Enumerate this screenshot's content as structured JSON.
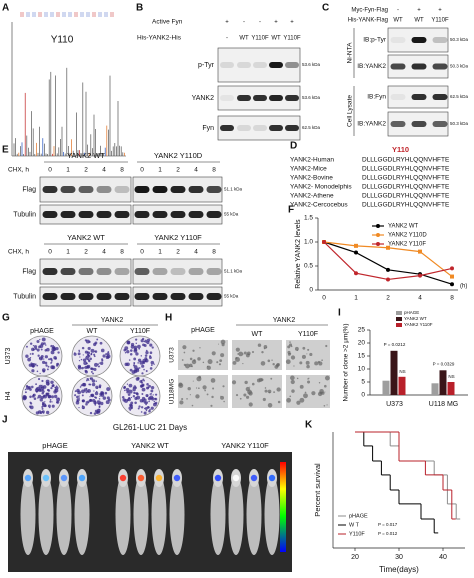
{
  "panels": {
    "A": {
      "label": "A",
      "annotation": "Y110"
    },
    "B": {
      "label": "B",
      "rows": [
        {
          "name": "Active Fyn",
          "lanes": [
            "+",
            "-",
            "-",
            "+",
            "+"
          ]
        },
        {
          "name": "His-YANK2-His",
          "lanes": [
            "-",
            "WT",
            "Y110F",
            "WT",
            "Y110F"
          ]
        }
      ],
      "blots": [
        {
          "name": "p-Tyr",
          "size": "53.6 kDa"
        },
        {
          "name": "YANK2",
          "size": "53.6 kDa"
        },
        {
          "name": "Fyn",
          "size": "62.5 kDa"
        }
      ]
    },
    "C": {
      "label": "C",
      "rows": [
        {
          "name": "Myc-Fyn-Flag",
          "lanes": [
            "-",
            "+",
            "+"
          ]
        },
        {
          "name": "His-YANK-Flag",
          "lanes": [
            "WT",
            "WT",
            "Y110F"
          ]
        }
      ],
      "groups": [
        "Ni-NTA",
        "Cell Lysate"
      ],
      "blots": [
        {
          "name": "IB:p-Tyr",
          "size": "50.3 kDa"
        },
        {
          "name": "IB:YANK2",
          "size": "50.3 kDa"
        },
        {
          "name": "IB:Fyn",
          "size": "62.5 kDa"
        },
        {
          "name": "IB:YANK2",
          "size": "50.3 kDa"
        }
      ]
    },
    "D": {
      "label": "D",
      "site": "Y110",
      "species": [
        {
          "name": "YANK2-Human",
          "sequence": "DLLLGGDLRYHLQQNVHFTE"
        },
        {
          "name": "YANK2-Mice",
          "sequence": "DLLLGGDLRYHLQQNVHFTE"
        },
        {
          "name": "YANK2-Bovine",
          "sequence": "DLLLGGDLRYHLQQNVHFTE"
        },
        {
          "name": "YANK2- Monodelphis",
          "sequence": "DLLLGGDLRYHLQQNVHFTE"
        },
        {
          "name": "YANK2-Athene",
          "sequence": "DLLLGGDLRYHLQQNVHFTE"
        },
        {
          "name": "YANK2-Cercocebus",
          "sequence": "DLLLGGDLRYHLQQNVHFTE"
        }
      ]
    },
    "E": {
      "label": "E",
      "experiments": [
        {
          "groups": [
            "YANK2 WT",
            "YANK2 Y110D"
          ],
          "time_label": "CHX, h",
          "times": [
            "0",
            "1",
            "2",
            "4",
            "8",
            "0",
            "1",
            "2",
            "4",
            "8"
          ],
          "blots": [
            {
              "name": "Flag",
              "size": "51.1 kDa"
            },
            {
              "name": "Tubulin",
              "size": "55 kDa"
            }
          ]
        },
        {
          "groups": [
            "YANK2 WT",
            "YANK2 Y110F"
          ],
          "time_label": "CHX, h",
          "times": [
            "0",
            "1",
            "2",
            "4",
            "8",
            "0",
            "1",
            "2",
            "4",
            "8"
          ],
          "blots": [
            {
              "name": "Flag",
              "size": "51.1 kDa"
            },
            {
              "name": "Tubulin",
              "size": "55 kDa"
            }
          ]
        }
      ]
    },
    "G": {
      "label": "G",
      "group": "YANK2",
      "columns": [
        "pHAGE",
        "WT",
        "Y110F"
      ],
      "rows": [
        "U373",
        "H4"
      ]
    },
    "H": {
      "label": "H",
      "group": "YANK2",
      "columns": [
        "pHAGE",
        "WT",
        "Y110F"
      ],
      "rows": [
        "U373",
        "U118MG"
      ]
    },
    "J": {
      "label": "J",
      "title": "GL261-LUC  21 Days",
      "groups": [
        "pHAGE",
        "YANK2 WT",
        "YANK2 Y110F"
      ]
    }
  },
  "chart_data": [
    {
      "type": "line",
      "panel_label": "F",
      "y_label": "Relative YANK2 levels",
      "x_unit": "(h)",
      "categories": [
        "0",
        "1",
        "2",
        "4",
        "8"
      ],
      "ylim": [
        0,
        1.5
      ],
      "yticks": [
        0,
        0.5,
        {
          "value": 1,
          "label": "1.0"
        },
        1.5
      ],
      "series": [
        {
          "name": "YANK2 WT",
          "color": "#000000",
          "values": [
            1,
            0.78,
            0.42,
            0.33,
            0.12
          ]
        },
        {
          "name": "YANK2 Y110D",
          "color": "#f08a24",
          "values": [
            1,
            0.92,
            0.88,
            0.8,
            0.28
          ]
        },
        {
          "name": "YANK2 Y110F",
          "color": "#c0262c",
          "values": [
            1,
            0.35,
            0.22,
            0.3,
            0.45
          ]
        }
      ]
    },
    {
      "type": "bar",
      "panel_label": "I",
      "y_label": "Number of clone >2 μm(%)",
      "categories": [
        "U373",
        "U118 MG"
      ],
      "ylim": [
        0,
        25
      ],
      "yticks": [
        0,
        5,
        10,
        15,
        20,
        25
      ],
      "series": [
        {
          "name": "pHAGE",
          "color": "#9e9e9e",
          "values": [
            5.5,
            4.5
          ]
        },
        {
          "name": "YANK2 WT",
          "color": "#3a1518",
          "values": [
            17,
            9.5
          ]
        },
        {
          "name": "YANK2 Y110F",
          "color": "#b8202a",
          "values": [
            7,
            5
          ]
        }
      ],
      "annotations": [
        "P = 0.0212",
        "NS",
        "P = 0.0329",
        "NS"
      ]
    },
    {
      "type": "step",
      "panel_label": "K",
      "x_label": "Time(days)",
      "y_label": "Percent survival",
      "xlim": [
        15,
        45
      ],
      "xticks": [
        20,
        30,
        40
      ],
      "ylim": [
        0,
        100
      ],
      "series": [
        {
          "name": "pHAGE",
          "color": "#8c8c8c",
          "x": [
            20,
            26,
            28,
            30,
            33,
            38,
            41,
            43
          ],
          "values": [
            100,
            100,
            88,
            75,
            75,
            63,
            38,
            25
          ]
        },
        {
          "name": "W T",
          "color": "#000000",
          "x": [
            20,
            22,
            24,
            26,
            28,
            30,
            35,
            38
          ],
          "values": [
            100,
            88,
            75,
            63,
            50,
            38,
            25,
            13
          ]
        },
        {
          "name": "Y110F",
          "color": "#b8202a",
          "x": [
            20,
            28,
            30,
            36,
            40,
            42
          ],
          "values": [
            100,
            100,
            75,
            63,
            50,
            25
          ]
        }
      ],
      "annotations": [
        "P = 0.017",
        "P = 0.012"
      ]
    }
  ]
}
